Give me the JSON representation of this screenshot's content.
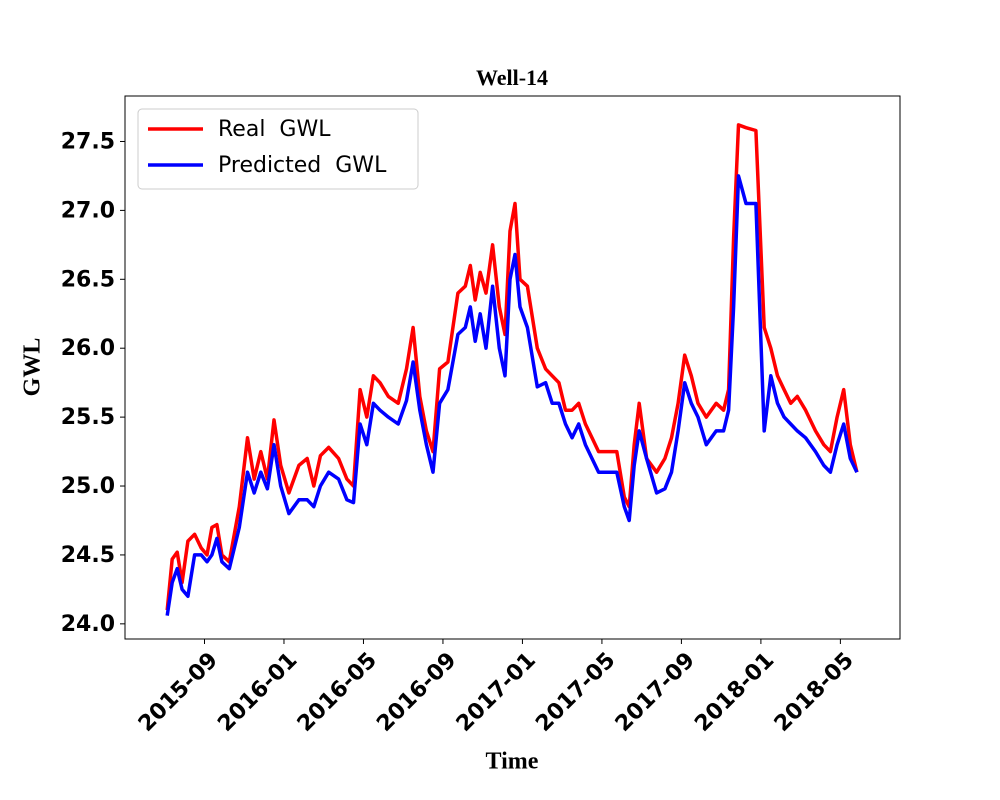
{
  "chart_data": {
    "type": "line",
    "title": "Well-14",
    "x_label": "Time",
    "y_label": "GWL",
    "x": [
      "2015-07",
      "2015-07",
      "2015-07",
      "2015-07",
      "2015-08",
      "2015-08",
      "2015-08",
      "2015-09",
      "2015-09",
      "2015-09",
      "2015-09",
      "2015-10",
      "2015-10",
      "2015-11",
      "2015-11",
      "2015-11",
      "2015-12",
      "2015-12",
      "2015-12",
      "2016-01",
      "2016-01",
      "2016-02",
      "2016-02",
      "2016-02",
      "2016-03",
      "2016-03",
      "2016-04",
      "2016-04",
      "2016-04",
      "2016-05",
      "2016-05",
      "2016-05",
      "2016-06",
      "2016-06",
      "2016-07",
      "2016-07",
      "2016-07",
      "2016-08",
      "2016-08",
      "2016-08",
      "2016-09",
      "2016-09",
      "2016-10",
      "2016-10",
      "2016-10",
      "2016-10",
      "2016-11",
      "2016-11",
      "2016-11",
      "2016-12",
      "2016-12",
      "2016-12",
      "2016-12",
      "2017-01",
      "2017-01",
      "2017-02",
      "2017-02",
      "2017-02",
      "2017-03",
      "2017-03",
      "2017-03",
      "2017-04",
      "2017-04",
      "2017-04",
      "2017-05",
      "2017-05",
      "2017-06",
      "2017-06",
      "2017-06",
      "2017-06",
      "2017-07",
      "2017-07",
      "2017-08",
      "2017-08",
      "2017-08",
      "2017-09",
      "2017-09",
      "2017-09",
      "2017-10",
      "2017-10",
      "2017-11",
      "2017-11",
      "2017-11",
      "2017-11",
      "2017-12",
      "2017-12",
      "2018-01",
      "2018-01",
      "2018-01",
      "2018-02",
      "2018-02",
      "2018-02",
      "2018-03",
      "2018-03",
      "2018-04",
      "2018-04",
      "2018-04",
      "2018-05",
      "2018-05",
      "2018-05"
    ],
    "series": [
      {
        "name": "Real  GWL",
        "color": "#ff0000",
        "values": [
          24.1,
          24.47,
          24.52,
          24.3,
          24.6,
          24.65,
          24.55,
          24.5,
          24.7,
          24.72,
          24.5,
          24.45,
          24.85,
          25.35,
          25.05,
          25.25,
          25.05,
          25.48,
          25.15,
          24.95,
          25.15,
          25.2,
          25.0,
          25.22,
          25.28,
          25.2,
          25.05,
          25.0,
          25.7,
          25.5,
          25.8,
          25.75,
          25.65,
          25.6,
          25.85,
          26.15,
          25.65,
          25.4,
          25.25,
          25.85,
          25.9,
          26.4,
          26.45,
          26.6,
          26.35,
          26.55,
          26.4,
          26.75,
          26.3,
          26.1,
          26.85,
          27.05,
          26.5,
          26.45,
          26.0,
          25.85,
          25.8,
          25.75,
          25.55,
          25.55,
          25.6,
          25.45,
          25.35,
          25.25,
          25.25,
          25.25,
          24.92,
          24.85,
          25.3,
          25.6,
          25.2,
          25.1,
          25.2,
          25.35,
          25.6,
          25.95,
          25.8,
          25.6,
          25.5,
          25.6,
          25.55,
          25.7,
          26.8,
          27.62,
          27.6,
          27.58,
          26.15,
          26.0,
          25.8,
          25.7,
          25.6,
          25.65,
          25.55,
          25.4,
          25.3,
          25.25,
          25.5,
          25.7,
          25.3,
          25.1
        ]
      },
      {
        "name": "Predicted  GWL",
        "color": "#0000ff",
        "values": [
          24.06,
          24.3,
          24.4,
          24.25,
          24.2,
          24.5,
          24.5,
          24.45,
          24.5,
          24.62,
          24.45,
          24.4,
          24.7,
          25.1,
          24.95,
          25.1,
          24.98,
          25.3,
          25.0,
          24.8,
          24.9,
          24.9,
          24.85,
          25.0,
          25.1,
          25.05,
          24.9,
          24.88,
          25.45,
          25.3,
          25.6,
          25.55,
          25.5,
          25.45,
          25.62,
          25.9,
          25.55,
          25.3,
          25.1,
          25.6,
          25.7,
          26.1,
          26.15,
          26.3,
          26.05,
          26.25,
          26.0,
          26.45,
          26.0,
          25.8,
          26.5,
          26.68,
          26.3,
          26.15,
          25.72,
          25.75,
          25.6,
          25.6,
          25.45,
          25.35,
          25.45,
          25.3,
          25.2,
          25.1,
          25.1,
          25.1,
          24.85,
          24.75,
          25.15,
          25.4,
          25.2,
          24.95,
          24.98,
          25.1,
          25.4,
          25.75,
          25.6,
          25.5,
          25.3,
          25.4,
          25.4,
          25.55,
          26.3,
          27.25,
          27.05,
          27.05,
          25.4,
          25.8,
          25.6,
          25.5,
          25.45,
          25.4,
          25.35,
          25.25,
          25.15,
          25.1,
          25.3,
          25.45,
          25.2,
          25.1
        ]
      }
    ],
    "xlim": [
      "2015-05",
      "2018-07"
    ],
    "xticks": [
      "2015-09",
      "2016-01",
      "2016-05",
      "2016-09",
      "2017-01",
      "2017-05",
      "2017-09",
      "2018-01",
      "2018-05"
    ],
    "ylim": [
      23.89,
      27.83
    ],
    "yticks": [
      {
        "value": 24,
        "label": "24.0"
      },
      24.5,
      {
        "value": 25,
        "label": "25.0"
      },
      25.5,
      {
        "value": 26,
        "label": "26.0"
      },
      26.5,
      {
        "value": 27,
        "label": "27.0"
      },
      27.5
    ],
    "legend": "upper left",
    "grid": false
  }
}
